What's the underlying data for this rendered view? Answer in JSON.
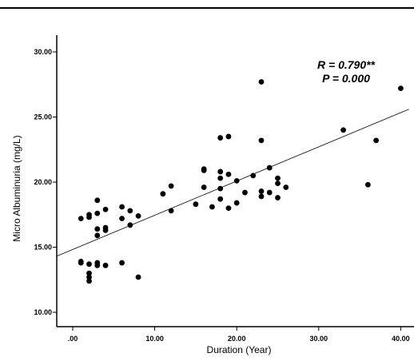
{
  "chart_data": {
    "type": "scatter",
    "title": "",
    "xlabel": "Duration (Year)",
    "ylabel": "Micro Albuminuria (mg/L)",
    "xlim": [
      -2,
      41
    ],
    "ylim": [
      9,
      31
    ],
    "x_ticks": [
      0,
      10,
      20,
      30,
      40
    ],
    "x_tick_labels": [
      ".00",
      "10.00",
      "20.00",
      "30.00",
      "40.00"
    ],
    "y_ticks": [
      10,
      15,
      20,
      25,
      30
    ],
    "y_tick_labels": [
      "10.00",
      "15.00",
      "20.00",
      "25.00",
      "30.00"
    ],
    "grid": false,
    "annotations": [
      "R = 0.790**",
      "P = 0.000"
    ],
    "fit_line": {
      "x": [
        -2,
        41
      ],
      "y": [
        14.3,
        25.6
      ]
    },
    "points": [
      {
        "x": 1,
        "y": 17.2
      },
      {
        "x": 1,
        "y": 13.9
      },
      {
        "x": 1,
        "y": 13.8
      },
      {
        "x": 2,
        "y": 17.3
      },
      {
        "x": 2,
        "y": 17.5
      },
      {
        "x": 2,
        "y": 13.7
      },
      {
        "x": 2,
        "y": 13.0
      },
      {
        "x": 2,
        "y": 12.7
      },
      {
        "x": 2,
        "y": 12.4
      },
      {
        "x": 3,
        "y": 18.6
      },
      {
        "x": 3,
        "y": 17.6
      },
      {
        "x": 3,
        "y": 16.4
      },
      {
        "x": 3,
        "y": 15.9
      },
      {
        "x": 3,
        "y": 13.8
      },
      {
        "x": 3,
        "y": 13.6
      },
      {
        "x": 4,
        "y": 17.9
      },
      {
        "x": 4,
        "y": 16.5
      },
      {
        "x": 4,
        "y": 16.3
      },
      {
        "x": 4,
        "y": 13.6
      },
      {
        "x": 6,
        "y": 18.1
      },
      {
        "x": 6,
        "y": 17.2
      },
      {
        "x": 6,
        "y": 13.8
      },
      {
        "x": 7,
        "y": 17.8
      },
      {
        "x": 7,
        "y": 16.7
      },
      {
        "x": 8,
        "y": 17.4
      },
      {
        "x": 8,
        "y": 12.7
      },
      {
        "x": 11,
        "y": 19.1
      },
      {
        "x": 12,
        "y": 19.7
      },
      {
        "x": 12,
        "y": 17.8
      },
      {
        "x": 15,
        "y": 18.3
      },
      {
        "x": 16,
        "y": 21.0
      },
      {
        "x": 16,
        "y": 20.9
      },
      {
        "x": 16,
        "y": 19.6
      },
      {
        "x": 17,
        "y": 18.1
      },
      {
        "x": 18,
        "y": 23.4
      },
      {
        "x": 18,
        "y": 20.8
      },
      {
        "x": 18,
        "y": 20.3
      },
      {
        "x": 18,
        "y": 19.5
      },
      {
        "x": 18,
        "y": 18.7
      },
      {
        "x": 19,
        "y": 23.5
      },
      {
        "x": 19,
        "y": 20.6
      },
      {
        "x": 19,
        "y": 18.0
      },
      {
        "x": 20,
        "y": 20.1
      },
      {
        "x": 20,
        "y": 18.4
      },
      {
        "x": 21,
        "y": 19.2
      },
      {
        "x": 22,
        "y": 20.5
      },
      {
        "x": 23,
        "y": 27.7
      },
      {
        "x": 23,
        "y": 23.2
      },
      {
        "x": 23,
        "y": 19.3
      },
      {
        "x": 23,
        "y": 18.9
      },
      {
        "x": 24,
        "y": 21.1
      },
      {
        "x": 24,
        "y": 19.2
      },
      {
        "x": 25,
        "y": 20.3
      },
      {
        "x": 25,
        "y": 19.9
      },
      {
        "x": 25,
        "y": 18.8
      },
      {
        "x": 26,
        "y": 19.6
      },
      {
        "x": 33,
        "y": 24.0
      },
      {
        "x": 36,
        "y": 19.8
      },
      {
        "x": 37,
        "y": 23.2
      },
      {
        "x": 40,
        "y": 27.2
      }
    ]
  }
}
